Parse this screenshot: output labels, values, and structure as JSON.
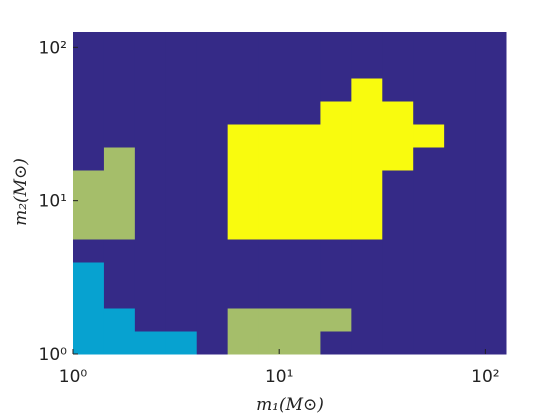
{
  "chart_data": {
    "type": "heatmap",
    "xlabel": "m₁(M⊙)",
    "ylabel": "m₂(M⊙)",
    "log_x": true,
    "log_y": true,
    "xlim": [
      1,
      125.9
    ],
    "ylim": [
      1,
      125.9
    ],
    "xticks": [
      {
        "value": 1,
        "label": "10⁰"
      },
      {
        "value": 10,
        "label": "10¹"
      },
      {
        "value": 100,
        "label": "10²"
      }
    ],
    "yticks": [
      {
        "value": 1,
        "label": "10⁰"
      },
      {
        "value": 10,
        "label": "10¹"
      },
      {
        "value": 100,
        "label": "10²"
      }
    ],
    "colors": [
      "#352a87",
      "#07a2d0",
      "#a5be6a",
      "#f9fb0e"
    ],
    "values": [
      [
        1,
        1,
        1,
        1,
        0,
        2,
        2,
        2,
        0,
        0,
        0,
        0,
        0,
        0
      ],
      [
        1,
        1,
        0,
        0,
        0,
        2,
        2,
        2,
        2,
        0,
        0,
        0,
        0,
        0
      ],
      [
        1,
        0,
        0,
        0,
        0,
        0,
        0,
        0,
        0,
        0,
        0,
        0,
        0,
        0
      ],
      [
        1,
        0,
        0,
        0,
        0,
        0,
        0,
        0,
        0,
        0,
        0,
        0,
        0,
        0
      ],
      [
        0,
        0,
        0,
        0,
        0,
        0,
        0,
        0,
        0,
        0,
        0,
        0,
        0,
        0
      ],
      [
        2,
        2,
        0,
        0,
        0,
        3,
        3,
        3,
        3,
        3,
        0,
        0,
        0,
        0
      ],
      [
        2,
        2,
        0,
        0,
        0,
        3,
        3,
        3,
        3,
        3,
        0,
        0,
        0,
        0
      ],
      [
        2,
        2,
        0,
        0,
        0,
        3,
        3,
        3,
        3,
        3,
        0,
        0,
        0,
        0
      ],
      [
        0,
        2,
        0,
        0,
        0,
        3,
        3,
        3,
        3,
        3,
        3,
        0,
        0,
        0
      ],
      [
        0,
        0,
        0,
        0,
        0,
        3,
        3,
        3,
        3,
        3,
        3,
        3,
        0,
        0
      ],
      [
        0,
        0,
        0,
        0,
        0,
        0,
        0,
        0,
        3,
        3,
        3,
        0,
        0,
        0
      ],
      [
        0,
        0,
        0,
        0,
        0,
        0,
        0,
        0,
        0,
        3,
        0,
        0,
        0,
        0
      ],
      [
        0,
        0,
        0,
        0,
        0,
        0,
        0,
        0,
        0,
        0,
        0,
        0,
        0,
        0
      ],
      [
        0,
        0,
        0,
        0,
        0,
        0,
        0,
        0,
        0,
        0,
        0,
        0,
        0,
        0
      ]
    ]
  }
}
